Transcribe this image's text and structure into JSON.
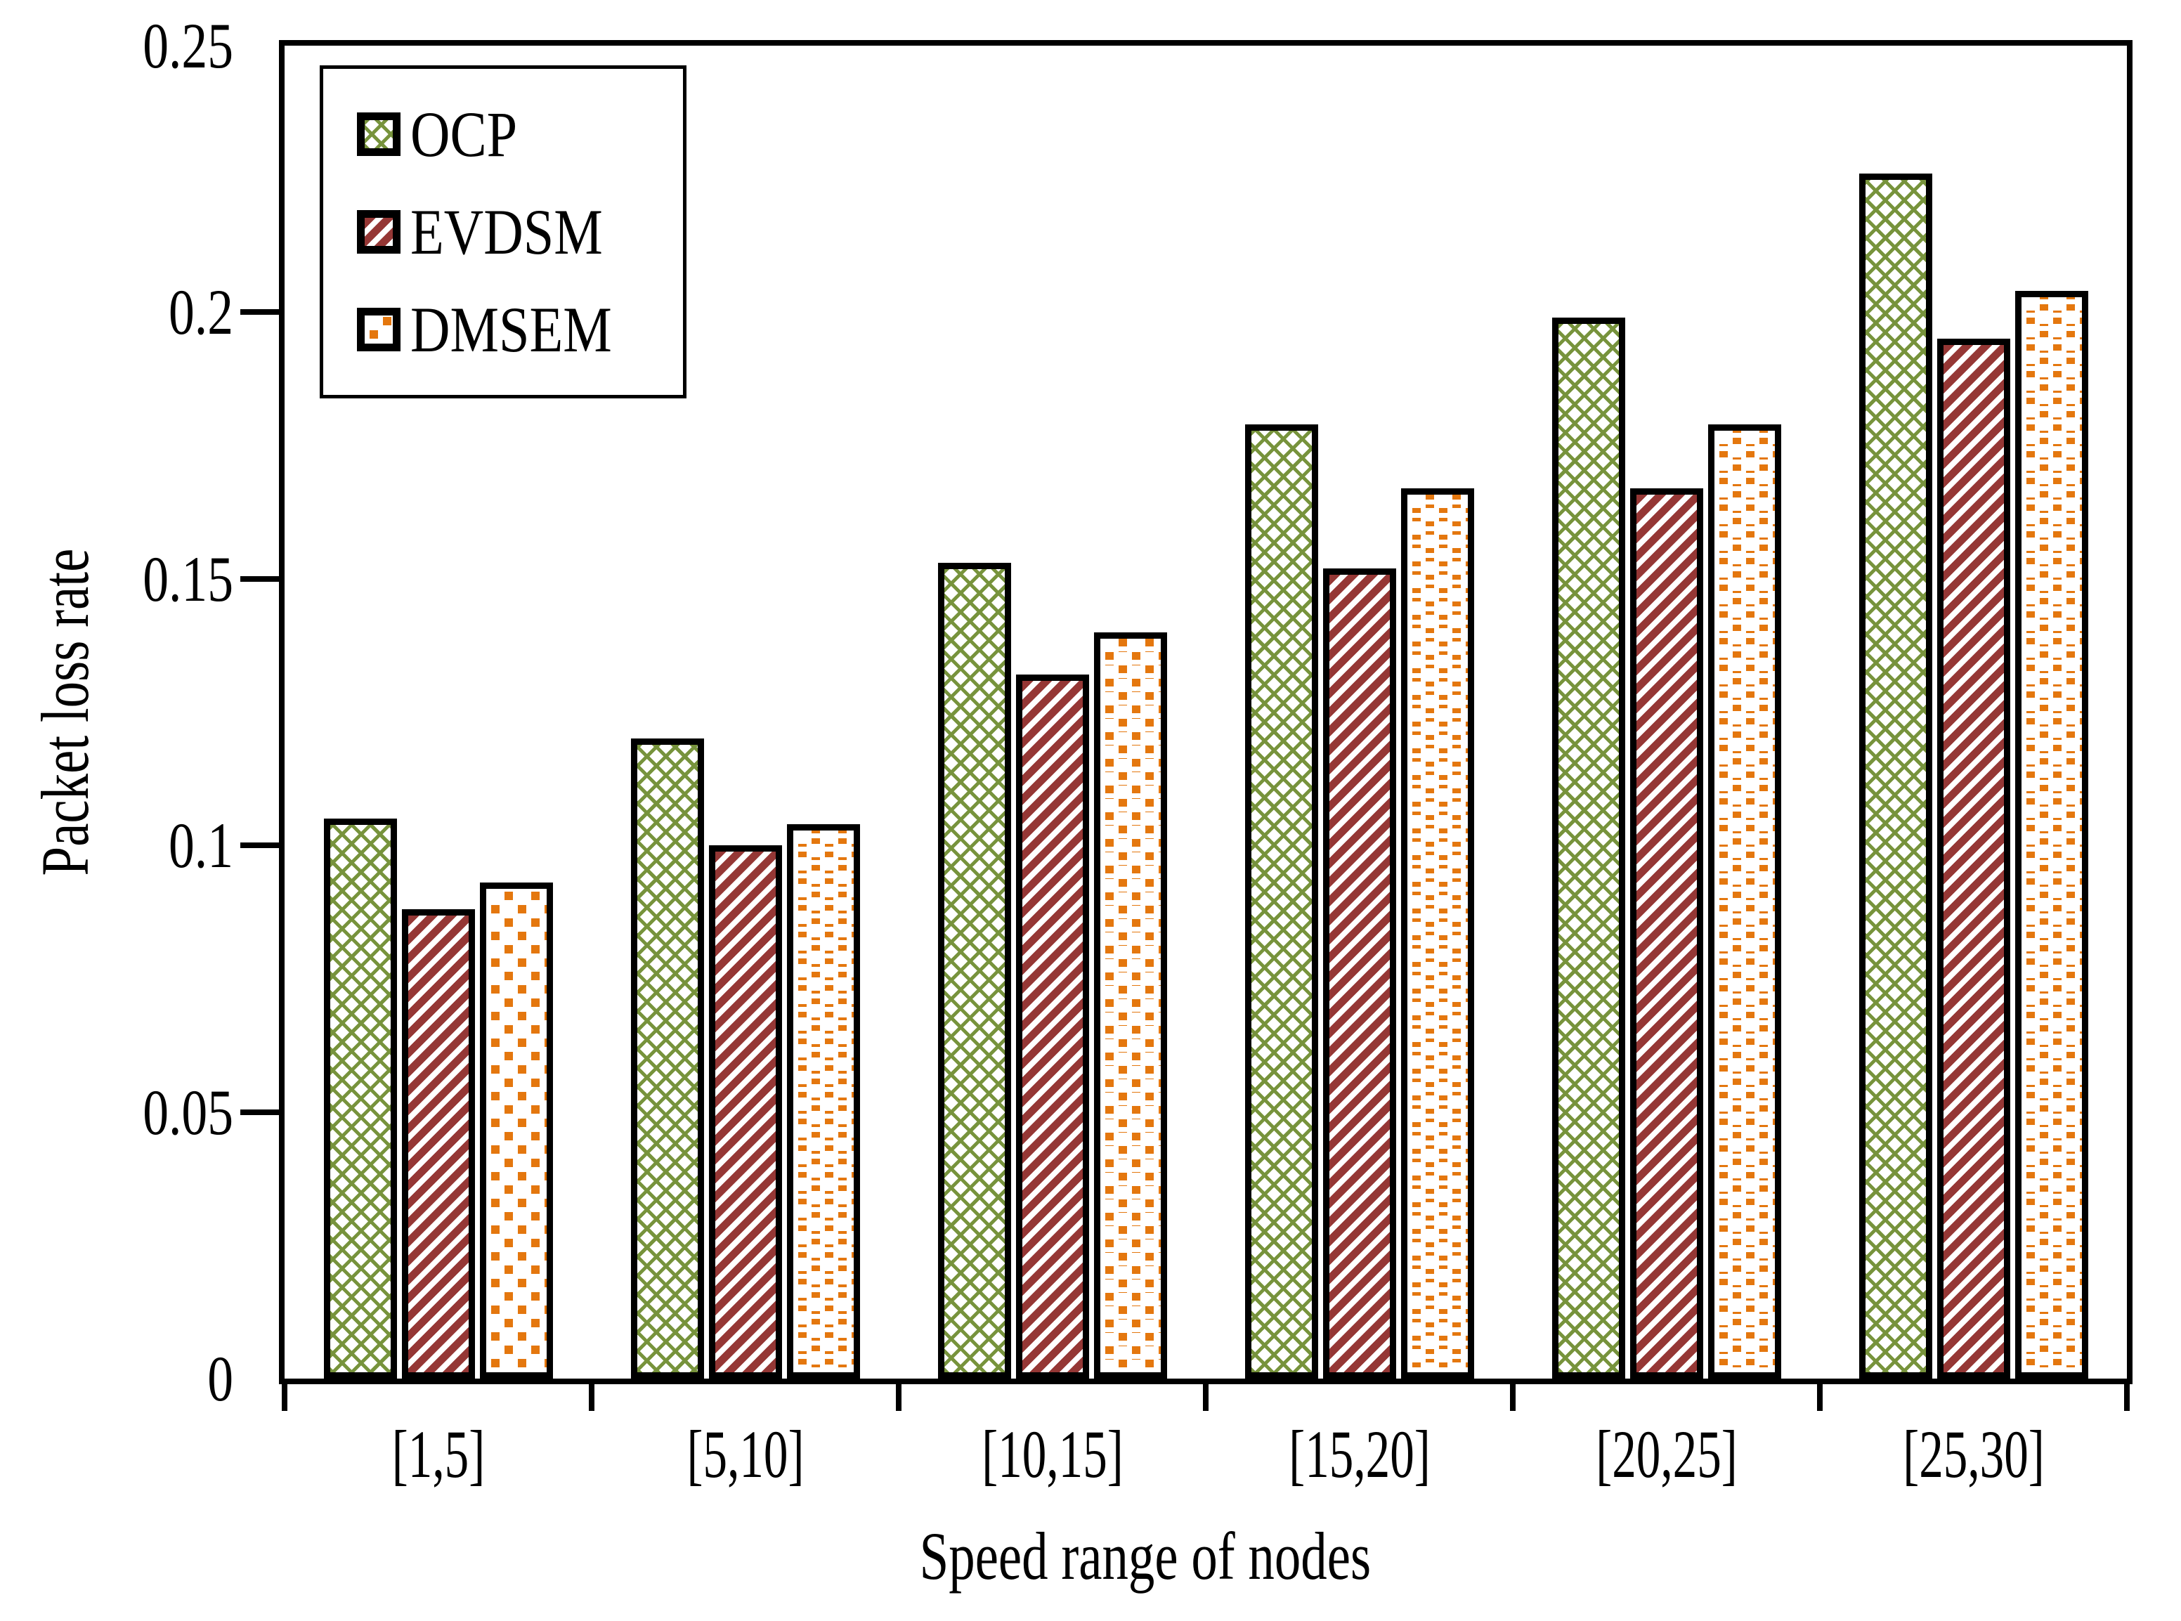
{
  "chart_data": {
    "type": "bar",
    "title": "",
    "xlabel": "Speed range of nodes",
    "ylabel": "Packet loss rate",
    "categories": [
      "[1,5]",
      "[5,10]",
      "[10,15]",
      "[15,20]",
      "[20,25]",
      "[25,30]"
    ],
    "series": [
      {
        "name": "OCP",
        "pattern": "green-zigzag-lattice",
        "color": "#77933C",
        "values": [
          0.105,
          0.12,
          0.153,
          0.179,
          0.199,
          0.226
        ]
      },
      {
        "name": "EVDSM",
        "pattern": "dark-red-upward-diagonal-stripes",
        "color": "#953735",
        "values": [
          0.088,
          0.1,
          0.132,
          0.152,
          0.167,
          0.195
        ]
      },
      {
        "name": "DMSEM",
        "pattern": "orange-square-dots",
        "color": "#E4770E",
        "values": [
          0.093,
          0.104,
          0.14,
          0.167,
          0.179,
          0.204
        ]
      }
    ],
    "ylim": [
      0,
      0.25
    ],
    "yticks": [
      0,
      0.05,
      0.1,
      0.15,
      0.2,
      0.25
    ],
    "ytick_labels": [
      "0",
      "0.05",
      "0.1",
      "0.15",
      "0.2",
      "0.25"
    ],
    "legend_position": "top-left-inside",
    "grid": false,
    "bar_border_color": "#000000",
    "frame_color": "#000000",
    "background_color": "#FFFFFF"
  }
}
